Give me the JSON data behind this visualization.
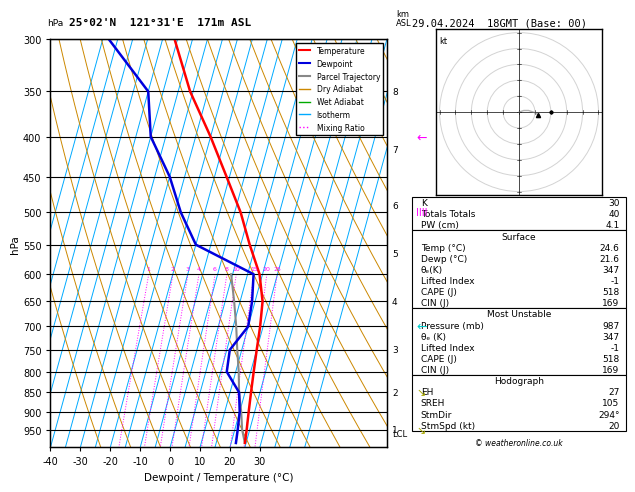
{
  "title_left": "25°02'N  121°31'E  171m ASL",
  "title_right": "29.04.2024  18GMT (Base: 00)",
  "xlabel": "Dewpoint / Temperature (°C)",
  "ylabel_left": "hPa",
  "pressure_major": [
    300,
    350,
    400,
    450,
    500,
    550,
    600,
    650,
    700,
    750,
    800,
    850,
    900,
    950
  ],
  "P_MIN": 300,
  "P_MAX": 1000,
  "T_MIN": -40,
  "T_MAX": 35,
  "SKEW": 37.5,
  "temp_profile": {
    "pressure": [
      987,
      950,
      900,
      850,
      800,
      750,
      700,
      650,
      600,
      550,
      500,
      450,
      400,
      350,
      300
    ],
    "temperature": [
      24.6,
      24.0,
      23.0,
      22.0,
      21.0,
      20.0,
      19.0,
      17.5,
      14.0,
      8.0,
      2.0,
      -6.0,
      -15.0,
      -26.0,
      -36.0
    ]
  },
  "dewpoint_profile": {
    "pressure": [
      987,
      950,
      900,
      850,
      800,
      750,
      700,
      650,
      600,
      550,
      500,
      450,
      400,
      350,
      300
    ],
    "dewpoint": [
      21.6,
      21.0,
      20.0,
      18.0,
      12.0,
      11.0,
      15.0,
      14.0,
      12.0,
      -10.0,
      -18.0,
      -25.0,
      -35.0,
      -40.0,
      -58.0
    ]
  },
  "parcel_profile": {
    "pressure": [
      987,
      950,
      900,
      850,
      800,
      750,
      700,
      650,
      600
    ],
    "temperature": [
      24.6,
      22.5,
      20.5,
      18.0,
      16.0,
      13.5,
      11.0,
      8.0,
      4.5
    ]
  },
  "mixing_ratio_values": [
    1,
    2,
    3,
    4,
    6,
    8,
    10,
    15,
    20,
    25
  ],
  "lcl_pressure": 960,
  "surface_data": {
    "K": 30,
    "Totals_Totals": 40,
    "PW_cm": 4.1,
    "Temp_C": 24.6,
    "Dewp_C": 21.6,
    "theta_e_K": 347,
    "Lifted_Index": -1,
    "CAPE_J": 518,
    "CIN_J": 169
  },
  "most_unstable_data": {
    "Pressure_mb": 987,
    "theta_e_K": 347,
    "Lifted_Index": -1,
    "CAPE_J": 518,
    "CIN_J": 169
  },
  "hodograph_data": {
    "EH": 27,
    "SREH": 105,
    "StmDir": 294,
    "StmSpd_kt": 20
  },
  "colors": {
    "temperature": "#ff0000",
    "dewpoint": "#0000dd",
    "parcel": "#888888",
    "dry_adiabat": "#cc8800",
    "wet_adiabat": "#00aa00",
    "isotherm": "#00aaff",
    "mixing_ratio": "#ff00ff",
    "background": "#ffffff",
    "grid_line": "#000000"
  },
  "km_labels": [
    {
      "pressure": 950,
      "km": 1
    },
    {
      "pressure": 850,
      "km": 2
    },
    {
      "pressure": 750,
      "km": 3
    },
    {
      "pressure": 650,
      "km": 4
    },
    {
      "pressure": 565,
      "km": 5
    },
    {
      "pressure": 490,
      "km": 6
    },
    {
      "pressure": 415,
      "km": 7
    },
    {
      "pressure": 350,
      "km": 8
    }
  ],
  "wind_indicators": [
    {
      "pressure": 400,
      "color": "#ff00ff",
      "type": "arrow_left"
    },
    {
      "pressure": 500,
      "color": "#ff00ff",
      "type": "barbs"
    },
    {
      "pressure": 700,
      "color": "#00dddd",
      "type": "arrow_left"
    },
    {
      "pressure": 850,
      "color": "#aaaa00",
      "type": "arrow_diag"
    },
    {
      "pressure": 950,
      "color": "#aaaa00",
      "type": "arrow_diag2"
    }
  ]
}
